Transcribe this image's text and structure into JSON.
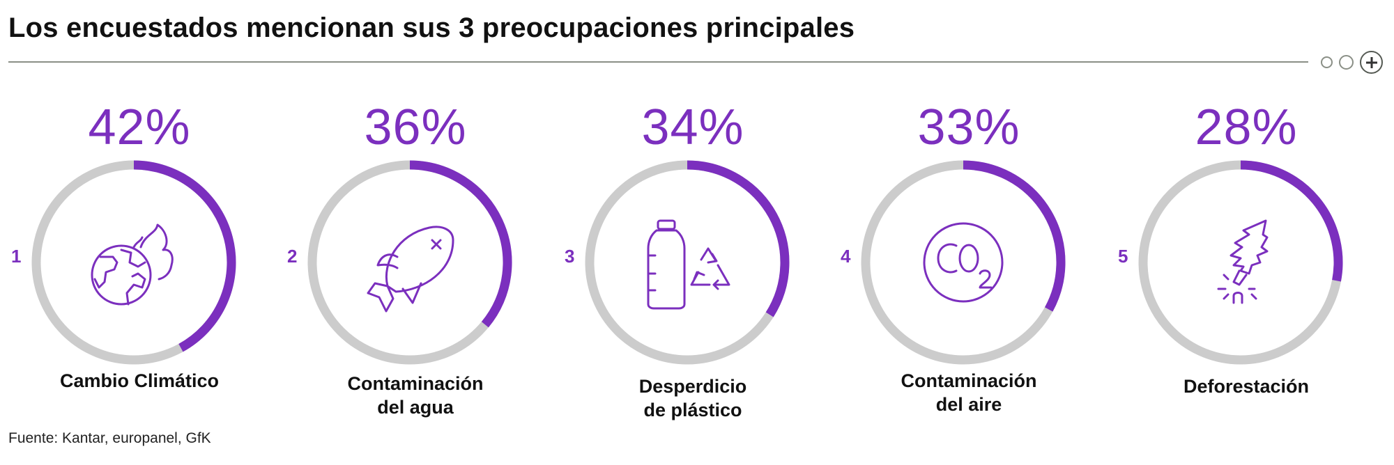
{
  "title": "Los encuestados mencionan sus 3 preocupaciones principales",
  "source": "Fuente: Kantar, europanel, GfK",
  "colors": {
    "accent": "#7b2fbe",
    "track": "#cccccc",
    "text": "#111111"
  },
  "chart_data": {
    "type": "pie",
    "subtype": "donut-progress-rings",
    "unit": "%",
    "max": 100,
    "items": [
      {
        "rank": "1",
        "value": 42,
        "value_label": "42%",
        "label": "Cambio Climático",
        "icon": "burning-globe-icon"
      },
      {
        "rank": "2",
        "value": 36,
        "value_label": "36%",
        "label": "Contaminación del agua",
        "icon": "dead-fish-icon"
      },
      {
        "rank": "3",
        "value": 34,
        "value_label": "34%",
        "label": "Desperdicio de plástico",
        "icon": "plastic-bottle-recycle-icon"
      },
      {
        "rank": "4",
        "value": 33,
        "value_label": "33%",
        "label": "Contaminación del aire",
        "icon": "co2-icon"
      },
      {
        "rank": "5",
        "value": 28,
        "value_label": "28%",
        "label": "Deforestación",
        "icon": "cut-tree-icon"
      }
    ]
  },
  "nav": {
    "icons": [
      "page-dot-icon",
      "page-dot-icon",
      "plus-circle-icon"
    ]
  }
}
